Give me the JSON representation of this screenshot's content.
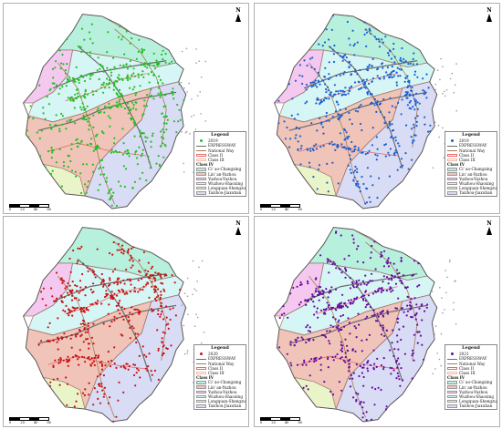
{
  "panels": [
    {
      "year": "2019",
      "point_color": "#21c021",
      "seed": 11
    },
    {
      "year": "2019",
      "point_color": "#1a5fd1",
      "seed": 23
    },
    {
      "year": "2020",
      "point_color": "#c81414",
      "seed": 37
    },
    {
      "year": "2021",
      "point_color": "#6a0aa0",
      "seed": 53
    }
  ],
  "legend": {
    "title": "Legend",
    "expwy": "EXPRESSWAY",
    "national": "National Way",
    "class2": "Class II",
    "class3": "Class III",
    "class4": "Class IV",
    "zones": [
      {
        "label": "Ci' ao-Changxing",
        "color": "#b8f0de"
      },
      {
        "label": "Lin' an-Yuzhou",
        "color": "#f0c4b8"
      },
      {
        "label": "Yuzhou-Yuzhou",
        "color": "#f5c8f0"
      },
      {
        "label": "Wuzhou-Shaoxing",
        "color": "#d6f5f5"
      },
      {
        "label": "Longquan-Shengzu",
        "color": "#e9f5c8"
      },
      {
        "label": "Taizhou-Jiaxuhan",
        "color": "#d9dcf5"
      }
    ]
  },
  "north": "N",
  "scale": {
    "labels": [
      "0",
      "20",
      "40",
      "80"
    ]
  },
  "colors": {
    "expwy": "#6b6b6b",
    "national": "#a47c55",
    "class2": "#e86a6a",
    "class3": "#f4b8a0",
    "zone_outline": "#8b5a4a",
    "province_outline": "#555555"
  }
}
